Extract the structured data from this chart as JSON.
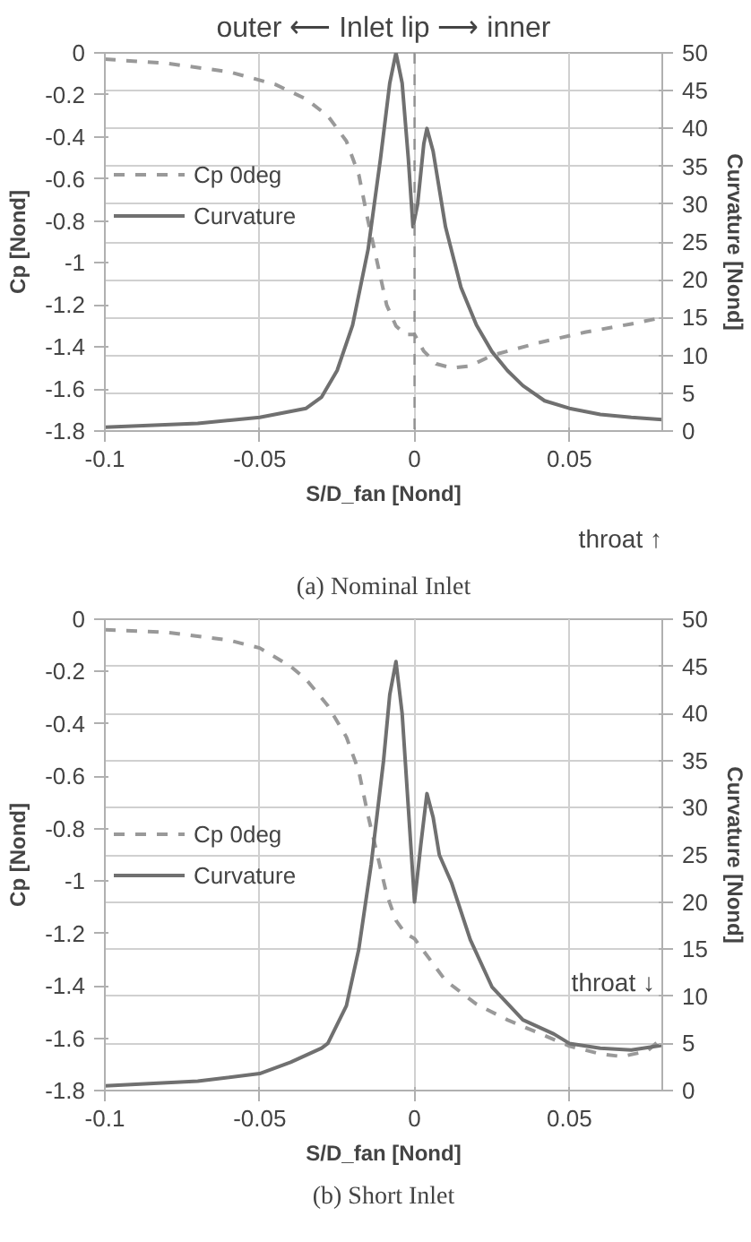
{
  "chart_data": [
    {
      "type": "line",
      "title": "outer ⟵ Inlet lip ⟶ inner",
      "xlabel": "S/D_fan [Nond]",
      "ylabel": "Cp [Nond]",
      "y2label": "Curvature [Nond]",
      "xlim": [
        -0.1,
        0.08
      ],
      "xticks": [
        -0.1,
        -0.05,
        0,
        0.05
      ],
      "ylim": [
        -1.8,
        0
      ],
      "yticks": [
        0,
        -0.2,
        -0.4,
        -0.6,
        -0.8,
        -1,
        -1.2,
        -1.4,
        -1.6,
        -1.8
      ],
      "y2lim": [
        0,
        50
      ],
      "y2ticks": [
        0,
        5,
        10,
        15,
        20,
        25,
        30,
        35,
        40,
        45,
        50
      ],
      "grid": true,
      "legend": "left",
      "ref_lines": [
        {
          "axis": "x",
          "value": 0,
          "color": "#909090",
          "line_style": "dashed"
        }
      ],
      "annotations": [
        "throat ↑",
        "(a) Nominal Inlet"
      ],
      "series": [
        {
          "name": "Cp 0deg",
          "color": "#999999",
          "line_style": "dashed",
          "x": [
            -0.1,
            -0.08,
            -0.06,
            -0.045,
            -0.035,
            -0.028,
            -0.022,
            -0.018,
            -0.015,
            -0.012,
            -0.009,
            -0.006,
            -0.003,
            0,
            0.003,
            0.007,
            0.012,
            0.018,
            0.025,
            0.04,
            0.055,
            0.07,
            0.08
          ],
          "values": [
            -0.03,
            -0.05,
            -0.09,
            -0.15,
            -0.22,
            -0.3,
            -0.42,
            -0.58,
            -0.8,
            -1.0,
            -1.2,
            -1.3,
            -1.34,
            -1.34,
            -1.42,
            -1.48,
            -1.5,
            -1.49,
            -1.44,
            -1.38,
            -1.33,
            -1.29,
            -1.26
          ]
        },
        {
          "name": "Curvature",
          "color": "#707070",
          "line_style": "solid",
          "axis": "y2",
          "x": [
            -0.1,
            -0.07,
            -0.05,
            -0.035,
            -0.03,
            -0.025,
            -0.02,
            -0.015,
            -0.011,
            -0.008,
            -0.006,
            -0.004,
            -0.002,
            -0.0005,
            0.001,
            0.003,
            0.004,
            0.006,
            0.01,
            0.015,
            0.02,
            0.025,
            0.03,
            0.035,
            0.042,
            0.05,
            0.06,
            0.07,
            0.08
          ],
          "values": [
            0.5,
            1,
            1.8,
            3,
            4.5,
            8,
            14,
            24,
            36,
            46,
            50,
            46,
            36,
            27,
            30,
            38,
            40,
            37,
            27,
            19,
            14,
            10.5,
            8,
            6,
            4,
            3,
            2.2,
            1.8,
            1.5
          ]
        }
      ]
    },
    {
      "type": "line",
      "xlabel": "S/D_fan [Nond]",
      "ylabel": "Cp [Nond]",
      "y2label": "Curvature [Nond]",
      "xlim": [
        -0.1,
        0.08
      ],
      "xticks": [
        -0.1,
        -0.05,
        0,
        0.05
      ],
      "ylim": [
        -1.8,
        0
      ],
      "yticks": [
        0,
        -0.2,
        -0.4,
        -0.6,
        -0.8,
        -1,
        -1.2,
        -1.4,
        -1.6,
        -1.8
      ],
      "y2lim": [
        0,
        50
      ],
      "y2ticks": [
        0,
        5,
        10,
        15,
        20,
        25,
        30,
        35,
        40,
        45,
        50
      ],
      "grid": true,
      "legend": "left",
      "annotations": [
        "throat ↓",
        "(b) Short Inlet"
      ],
      "series": [
        {
          "name": "Cp 0deg",
          "color": "#999999",
          "line_style": "dashed",
          "x": [
            -0.1,
            -0.08,
            -0.06,
            -0.05,
            -0.04,
            -0.035,
            -0.028,
            -0.022,
            -0.018,
            -0.015,
            -0.012,
            -0.009,
            -0.006,
            -0.003,
            0,
            0.005,
            0.01,
            0.02,
            0.03,
            0.04,
            0.05,
            0.06,
            0.067,
            0.075,
            0.08
          ],
          "values": [
            -0.04,
            -0.05,
            -0.08,
            -0.11,
            -0.18,
            -0.23,
            -0.33,
            -0.45,
            -0.58,
            -0.75,
            -0.9,
            -1.05,
            -1.15,
            -1.2,
            -1.22,
            -1.3,
            -1.38,
            -1.47,
            -1.53,
            -1.58,
            -1.63,
            -1.66,
            -1.67,
            -1.65,
            -1.6
          ]
        },
        {
          "name": "Curvature",
          "color": "#707070",
          "line_style": "solid",
          "axis": "y2",
          "x": [
            -0.1,
            -0.07,
            -0.05,
            -0.04,
            -0.03,
            -0.028,
            -0.022,
            -0.018,
            -0.014,
            -0.01,
            -0.008,
            -0.006,
            -0.004,
            -0.002,
            0,
            0.002,
            0.004,
            0.006,
            0.008,
            0.012,
            0.018,
            0.025,
            0.035,
            0.045,
            0.05,
            0.06,
            0.07,
            0.08
          ],
          "values": [
            0.5,
            1,
            1.8,
            3,
            4.5,
            5,
            9,
            15,
            24,
            35,
            42,
            45.5,
            40,
            30,
            20,
            26,
            31.5,
            29,
            25,
            22,
            16,
            11,
            7.5,
            6,
            5,
            4.5,
            4.3,
            4.8
          ]
        }
      ]
    }
  ]
}
